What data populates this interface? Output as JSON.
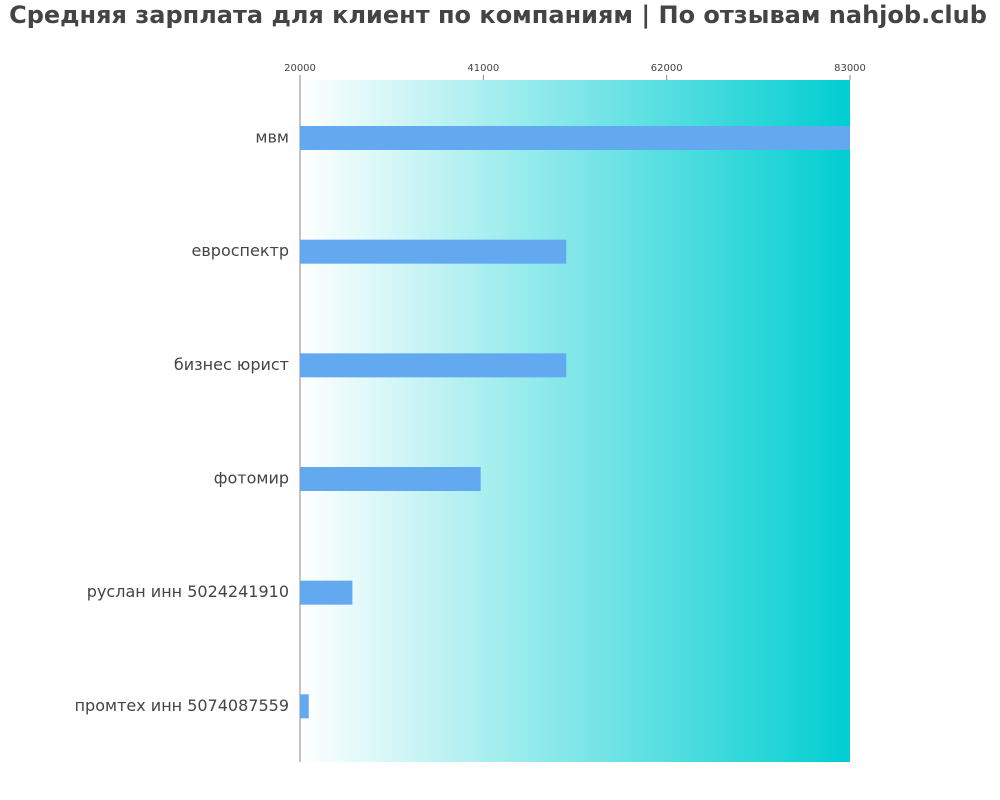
{
  "chart_data": {
    "type": "barh",
    "title": "Средняя зарплата для клиент по компаниям  | По отзывам nahjob.club",
    "categories": [
      "мвм",
      "евроспектр",
      "бизнес юрист",
      "фотомир",
      "руслан инн 5024241910",
      "промтех инн 5074087559"
    ],
    "values": [
      83000,
      50500,
      50500,
      40700,
      26000,
      21000
    ],
    "color": "#63a9f0",
    "xlim": [
      20000,
      83000
    ],
    "xticks": [
      20000,
      41000,
      62000,
      83000
    ],
    "background_gradient": [
      "#ffffff",
      "#00ced1"
    ]
  }
}
